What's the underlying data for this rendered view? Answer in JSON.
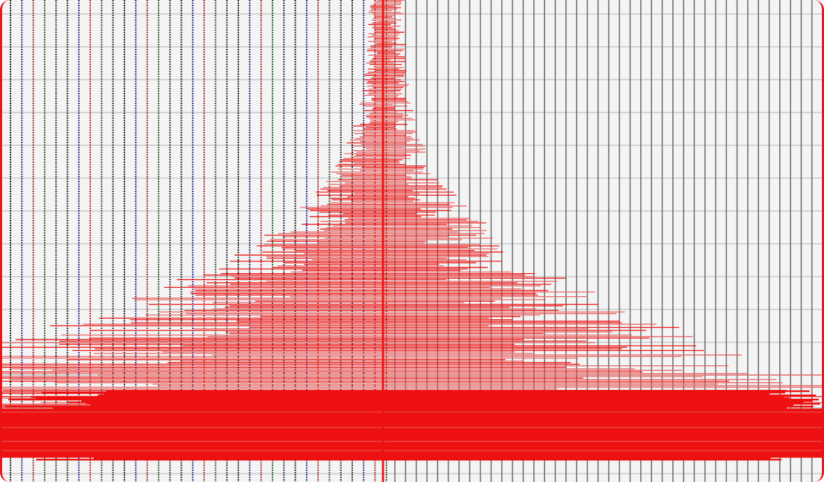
{
  "graphic": {
    "colors": {
      "background": "#f4f4f4",
      "frame_border": "#e8141c",
      "left_line_colors": [
        "#111111",
        "#1a1a7a",
        "#9a1a1a",
        "#1f4a1f",
        "#222222"
      ],
      "right_line_color": "#6a6a6a",
      "grid_horizontal": "#c8c8c8",
      "trace_color": "#ee1111",
      "trace_light": "#e86060"
    }
  }
}
